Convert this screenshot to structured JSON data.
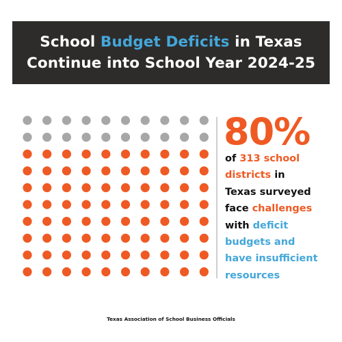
{
  "header": {
    "line1": [
      "School ",
      "Budget Deficits",
      " in Texas"
    ],
    "line2": "Continue into School Year 2024-25"
  },
  "stat": {
    "percent": "80%",
    "line1": [
      "of ",
      "313 school"
    ],
    "line2": [
      "districts",
      " in"
    ],
    "line3": "Texas surveyed",
    "line4": [
      "face ",
      "challenges"
    ],
    "line5": [
      "with ",
      "deficit"
    ],
    "line6": "budgets and",
    "line7": "have insufficient",
    "line8": "resources"
  },
  "chart_data": {
    "type": "waffle",
    "total": 100,
    "rows": 10,
    "columns": 10,
    "series": [
      {
        "name": "other",
        "value": 20,
        "color": "#a7a7a7"
      },
      {
        "name": "districts facing deficit challenges",
        "value": 80,
        "color": "#ef5a24"
      }
    ]
  },
  "footer": {
    "source": "Texas Association of School Business Officials"
  }
}
